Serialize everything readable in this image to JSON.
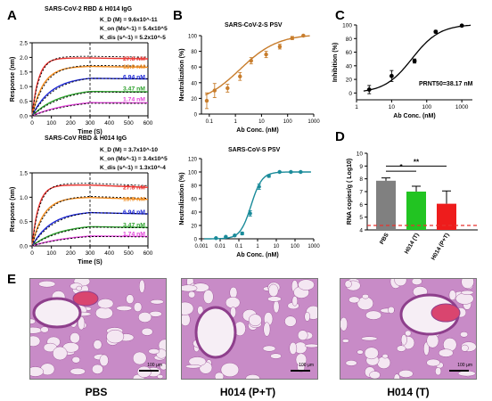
{
  "panels": {
    "A": {
      "label": "A",
      "top": {
        "title": "SARS-CoV-2 RBD & H014 IgG",
        "params": [
          "K_D (M) = 9.6x10^-11",
          "K_on (Ms^-1) = 5.4x10^5",
          "K_dis (s^-1) = 5.2x10^-5"
        ]
      },
      "bottom": {
        "title": "SARS-CoV RBD & H014 IgG",
        "params": [
          "K_D (M) = 3.7x10^-10",
          "K_on (Ms^-1) = 3.4x10^5",
          "K_dis (s^-1) = 1.3x10^-4"
        ]
      },
      "xlabel": "Time (S)",
      "ylabel": "Response (nm)"
    },
    "B": {
      "label": "B",
      "top_title": "SARS-CoV-2-S PSV",
      "bottom_title": "SARS-CoV-S PSV",
      "xlabel": "Ab Conc. (nM)",
      "ylabel": "Neutralization (%)"
    },
    "C": {
      "label": "C",
      "xlabel": "Ab Conc. (nM)",
      "ylabel": "Inhibition (%)",
      "annotation": "PRNT50=38.17 nM"
    },
    "D": {
      "label": "D",
      "ylabel": "RNA copies/g ( Log10)",
      "sig1": "*",
      "sig2": "**"
    },
    "E": {
      "label": "E",
      "captions": [
        "PBS",
        "H014 (P+T)",
        "H014 (T)"
      ],
      "scale_label": "100 µm"
    }
  },
  "colors": {
    "red": "#e8322e",
    "orange": "#f08a1c",
    "blue": "#1d27d4",
    "green": "#2ca02c",
    "magenta": "#e040d8",
    "brown": "#c87d2c",
    "teal": "#1a8b9a",
    "gray": "#808080",
    "bargreen": "#22c422",
    "barred": "#ee1c1c",
    "lod": "#e8322e",
    "tissue": "#c88bc7",
    "tissue_dark": "#8e3f8c",
    "tissue_bg": "#f4e7f2"
  },
  "chart_data": [
    {
      "id": "A-top",
      "type": "line",
      "title": "SARS-CoV-2 RBD & H014 IgG",
      "xlabel": "Time (S)",
      "ylabel": "Response (nm)",
      "xlim": [
        0,
        600
      ],
      "ylim": [
        0,
        2.5
      ],
      "xticks": [
        0,
        100,
        200,
        300,
        400,
        500,
        600
      ],
      "yticks": [
        0.0,
        0.5,
        1.0,
        1.5,
        2.0,
        2.5
      ],
      "dissociation_start": 300,
      "series": [
        {
          "name": "27.8 nM",
          "color": "red",
          "plateau": 1.98,
          "kobs": 0.03,
          "koff": 5e-05
        },
        {
          "name": "13.9 nM",
          "color": "orange",
          "plateau": 1.7,
          "kobs": 0.017,
          "koff": 5e-05
        },
        {
          "name": "6.94 nM",
          "color": "blue",
          "plateau": 1.35,
          "kobs": 0.01,
          "koff": 5e-05
        },
        {
          "name": "3.47 nM",
          "color": "green",
          "plateau": 0.95,
          "kobs": 0.007,
          "koff": 5e-05
        },
        {
          "name": "1.74 nM",
          "color": "magenta",
          "plateau": 0.58,
          "kobs": 0.005,
          "koff": 5e-05
        }
      ]
    },
    {
      "id": "A-bottom",
      "type": "line",
      "title": "SARS-CoV RBD & H014 IgG",
      "xlabel": "Time (S)",
      "ylabel": "Response (nm)",
      "xlim": [
        0,
        600
      ],
      "ylim": [
        0,
        1.5
      ],
      "xticks": [
        0,
        100,
        200,
        300,
        400,
        500,
        600
      ],
      "yticks": [
        0.0,
        0.5,
        1.0,
        1.5
      ],
      "dissociation_start": 300,
      "series": [
        {
          "name": "27.8 nM",
          "color": "red",
          "plateau": 1.25,
          "kobs": 0.03,
          "koff": 0.00013
        },
        {
          "name": "13.9 nM",
          "color": "orange",
          "plateau": 1.0,
          "kobs": 0.017,
          "koff": 0.00013
        },
        {
          "name": "6.94 nM",
          "color": "blue",
          "plateau": 0.72,
          "kobs": 0.01,
          "koff": 0.00013
        },
        {
          "name": "3.47 nM",
          "color": "green",
          "plateau": 0.45,
          "kobs": 0.007,
          "koff": 0.00013
        },
        {
          "name": "1.74 nM",
          "color": "magenta",
          "plateau": 0.26,
          "kobs": 0.005,
          "koff": 0.00013
        }
      ]
    },
    {
      "id": "B-top",
      "type": "scatter",
      "title": "SARS-CoV-2-S PSV",
      "xlabel": "Ab Conc. (nM)",
      "ylabel": "Neutralization (%)",
      "xscale": "log",
      "xlim": [
        0.05,
        1000
      ],
      "ylim": [
        0,
        100
      ],
      "xticks": [
        0.1,
        1,
        10,
        100,
        1000
      ],
      "xticklabels": [
        "0.1",
        "1",
        "10",
        "100",
        "1000"
      ],
      "yticks": [
        0,
        20,
        40,
        60,
        80,
        100
      ],
      "color": "brown",
      "points": [
        {
          "x": 0.08,
          "y": 17,
          "err": 10
        },
        {
          "x": 0.16,
          "y": 30,
          "err": 9
        },
        {
          "x": 0.5,
          "y": 33,
          "err": 5
        },
        {
          "x": 1.5,
          "y": 48,
          "err": 5
        },
        {
          "x": 4,
          "y": 68,
          "err": 4
        },
        {
          "x": 15,
          "y": 76,
          "err": 4
        },
        {
          "x": 50,
          "y": 86,
          "err": 3
        },
        {
          "x": 150,
          "y": 97,
          "err": 2
        },
        {
          "x": 400,
          "y": 100,
          "err": 1
        }
      ]
    },
    {
      "id": "B-bottom",
      "type": "scatter",
      "title": "SARS-CoV-S PSV",
      "xlabel": "Ab Conc. (nM)",
      "ylabel": "Neutralization (%)",
      "xscale": "log",
      "xlim": [
        0.001,
        1000
      ],
      "ylim": [
        0,
        120
      ],
      "xticks": [
        0.001,
        0.01,
        0.1,
        1,
        10,
        100,
        1000
      ],
      "xticklabels": [
        "0.001",
        "0.01",
        "0.1",
        "1",
        "10",
        "100",
        "1000"
      ],
      "yticks": [
        0,
        20,
        40,
        60,
        80,
        100,
        120
      ],
      "color": "teal",
      "points": [
        {
          "x": 0.006,
          "y": 1,
          "err": 1
        },
        {
          "x": 0.02,
          "y": 3,
          "err": 1
        },
        {
          "x": 0.06,
          "y": 5,
          "err": 1
        },
        {
          "x": 0.15,
          "y": 8,
          "err": 2
        },
        {
          "x": 0.4,
          "y": 38,
          "err": 4
        },
        {
          "x": 1.2,
          "y": 78,
          "err": 4
        },
        {
          "x": 4,
          "y": 94,
          "err": 2
        },
        {
          "x": 15,
          "y": 100,
          "err": 1
        },
        {
          "x": 60,
          "y": 100,
          "err": 1
        },
        {
          "x": 200,
          "y": 100,
          "err": 1
        }
      ]
    },
    {
      "id": "C",
      "type": "scatter",
      "xlabel": "Ab Conc. (nM)",
      "ylabel": "Inhibition (%)",
      "xscale": "log",
      "xlim": [
        1,
        2000
      ],
      "ylim": [
        -10,
        100
      ],
      "xticks": [
        1,
        10,
        100,
        1000
      ],
      "xticklabels": [
        "1",
        "10",
        "100",
        "1000"
      ],
      "yticks": [
        0,
        20,
        40,
        60,
        80,
        100
      ],
      "annotation": "PRNT50=38.17 nM",
      "points": [
        {
          "x": 2.3,
          "y": 5,
          "err": 6
        },
        {
          "x": 10,
          "y": 25,
          "err": 8
        },
        {
          "x": 45,
          "y": 47,
          "err": 3
        },
        {
          "x": 180,
          "y": 90,
          "err": 2
        },
        {
          "x": 1000,
          "y": 99,
          "err": 1
        }
      ]
    },
    {
      "id": "D",
      "type": "bar",
      "ylabel": "RNA copies/g ( Log10)",
      "ylim": [
        4,
        10
      ],
      "yticks": [
        4,
        5,
        6,
        7,
        8,
        9,
        10
      ],
      "categories": [
        "PBS",
        "H014 (T)",
        "H014 (P+T)"
      ],
      "values": [
        7.85,
        7.0,
        6.05
      ],
      "errors": [
        0.22,
        0.42,
        1.0
      ],
      "limit_of_detection": 4.35,
      "significance": [
        {
          "from": 0,
          "to": 1,
          "label": "*",
          "y": 8.6
        },
        {
          "from": 0,
          "to": 2,
          "label": "**",
          "y": 9.0
        }
      ]
    }
  ]
}
